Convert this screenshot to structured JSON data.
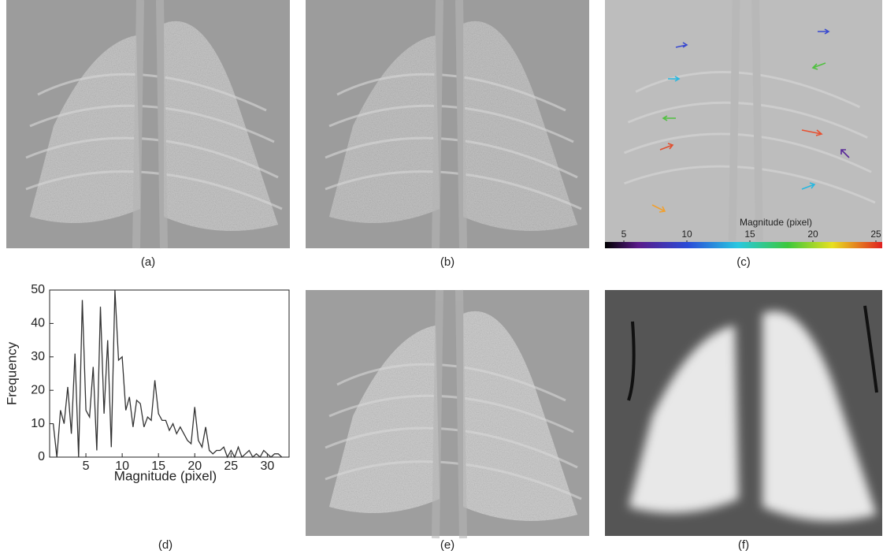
{
  "panels": [
    {
      "label": "(a)"
    },
    {
      "label": "(b)"
    },
    {
      "label": "(c)"
    },
    {
      "label": "(d)"
    },
    {
      "label": "(e)"
    },
    {
      "label": "(f)"
    }
  ],
  "colorbar": {
    "title": "Magnitude (pixel)",
    "lim": [
      3.5,
      25.5
    ],
    "ticks": [
      5,
      10,
      15,
      20,
      25
    ]
  },
  "chart_data": {
    "type": "line",
    "xlabel": "Magnitude (pixel)",
    "ylabel": "Frequency",
    "color": "#333333",
    "x": [
      0.5,
      1,
      1.5,
      2,
      2.5,
      3,
      3.5,
      4,
      4.5,
      5,
      5.5,
      6,
      6.5,
      7,
      7.5,
      8,
      8.5,
      9,
      9.5,
      10,
      10.5,
      11,
      11.5,
      12,
      12.5,
      13,
      13.5,
      14,
      14.5,
      15,
      15.5,
      16,
      16.5,
      17,
      17.5,
      18,
      18.5,
      19,
      19.5,
      20,
      20.5,
      21,
      21.5,
      22,
      22.5,
      23,
      23.5,
      24,
      24.5,
      25,
      25.5,
      26,
      26.5,
      27,
      27.5,
      28,
      28.5,
      29,
      29.5,
      30,
      30.5,
      31,
      31.5,
      32
    ],
    "values": [
      10,
      0,
      14,
      10,
      21,
      7,
      31,
      0,
      47,
      14,
      12,
      27,
      2,
      45,
      13,
      35,
      3,
      50,
      29,
      30,
      14,
      18,
      9,
      17,
      16,
      9,
      12,
      11,
      23,
      13,
      11,
      11,
      8,
      10,
      7,
      9,
      7,
      5,
      4,
      15,
      5,
      3,
      9,
      2,
      1,
      2,
      2,
      3,
      0,
      2,
      0,
      3,
      0,
      1,
      2,
      0,
      1,
      0,
      2,
      1,
      0,
      1,
      1,
      0
    ],
    "xlim": [
      0,
      33
    ],
    "xticks": [
      5,
      10,
      15,
      20,
      25,
      30
    ],
    "ylim": [
      0,
      50
    ],
    "yticks": [
      0,
      10,
      20,
      30,
      40,
      50
    ]
  }
}
